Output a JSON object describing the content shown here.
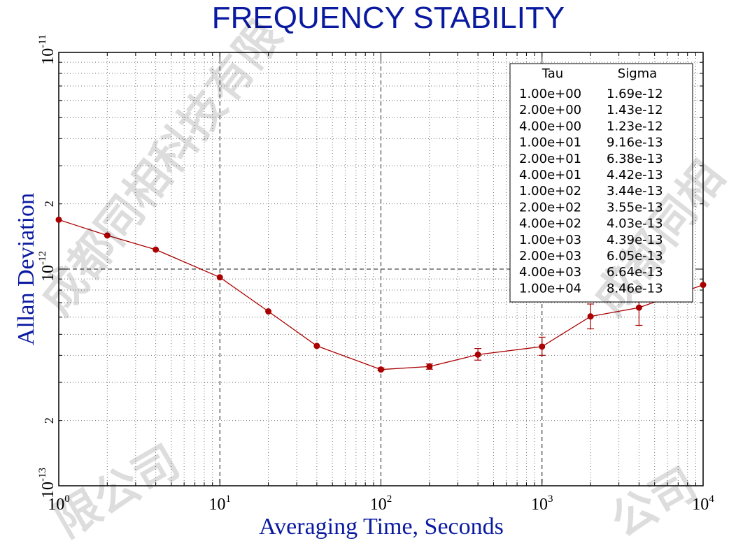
{
  "chart_data": {
    "type": "line",
    "title": "FREQUENCY STABILITY",
    "xlabel": "Averaging Time, Seconds",
    "ylabel": "Allan Deviation",
    "x_scale": "log",
    "y_scale": "log",
    "xlim": [
      1,
      10000
    ],
    "ylim": [
      1e-13,
      1e-11
    ],
    "grid": true,
    "x_ticks": [
      {
        "base": "10",
        "exp": "0"
      },
      {
        "base": "10",
        "exp": "1"
      },
      {
        "base": "10",
        "exp": "2"
      },
      {
        "base": "10",
        "exp": "3"
      },
      {
        "base": "10",
        "exp": "4"
      }
    ],
    "y_ticks": [
      {
        "base": "10",
        "exp": "-13"
      },
      {
        "base": "10",
        "exp": "-12"
      },
      {
        "base": "10",
        "exp": "-11"
      }
    ],
    "y_minor_labels": [
      "2",
      "2"
    ],
    "series": [
      {
        "color": "#aa0000",
        "x": [
          1,
          2,
          4,
          10,
          20,
          40,
          100,
          200,
          400,
          1000,
          2000,
          4000,
          10000
        ],
        "y": [
          1.69e-12,
          1.43e-12,
          1.23e-12,
          9.16e-13,
          6.38e-13,
          4.42e-13,
          3.44e-13,
          3.55e-13,
          4.03e-13,
          4.39e-13,
          6.05e-13,
          6.64e-13,
          8.46e-13
        ],
        "err_lo": [
          1.69e-12,
          1.43e-12,
          1.23e-12,
          9.16e-13,
          6.38e-13,
          4.42e-13,
          3.4e-13,
          3.45e-13,
          3.8e-13,
          4e-13,
          5.3e-13,
          5.5e-13,
          8.46e-13
        ],
        "err_hi": [
          1.69e-12,
          1.43e-12,
          1.23e-12,
          9.16e-13,
          6.38e-13,
          4.42e-13,
          3.5e-13,
          3.65e-13,
          4.3e-13,
          4.85e-13,
          6.9e-13,
          7.8e-13,
          8.46e-13
        ]
      }
    ],
    "table": {
      "headers": [
        "Tau",
        "Sigma"
      ],
      "rows": [
        [
          "1.00e+00",
          "1.69e-12"
        ],
        [
          "2.00e+00",
          "1.43e-12"
        ],
        [
          "4.00e+00",
          "1.23e-12"
        ],
        [
          "1.00e+01",
          "9.16e-13"
        ],
        [
          "2.00e+01",
          "6.38e-13"
        ],
        [
          "4.00e+01",
          "4.42e-13"
        ],
        [
          "1.00e+02",
          "3.44e-13"
        ],
        [
          "2.00e+02",
          "3.55e-13"
        ],
        [
          "4.00e+02",
          "4.03e-13"
        ],
        [
          "1.00e+03",
          "4.39e-13"
        ],
        [
          "2.00e+03",
          "6.05e-13"
        ],
        [
          "4.00e+03",
          "6.64e-13"
        ],
        [
          "1.00e+04",
          "8.46e-13"
        ]
      ]
    },
    "legend_position": "top-right"
  },
  "watermark": {
    "text_a": "成都同相科技有限",
    "text_b": "限公司",
    "text_c": "成都同相",
    "text_d": "公司"
  }
}
